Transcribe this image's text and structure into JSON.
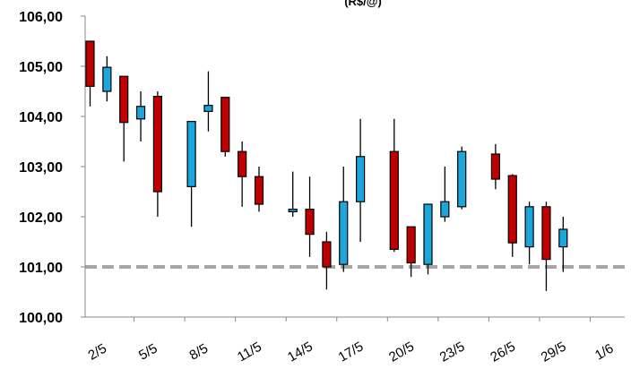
{
  "chart_data": {
    "type": "candlestick",
    "title": "(R$/@)",
    "y_tick_labels": [
      "100,00",
      "101,00",
      "102,00",
      "103,00",
      "104,00",
      "105,00",
      "106,00"
    ],
    "ylim": [
      100,
      106
    ],
    "x_tick_labels": [
      "2/5",
      "5/5",
      "8/5",
      "11/5",
      "14/5",
      "17/5",
      "20/5",
      "23/5",
      "26/5",
      "29/5",
      "1/6"
    ],
    "reference_line": {
      "value": 101.0,
      "style": "dashed",
      "color": "#a6a6a6"
    },
    "colors": {
      "down": "#c00000",
      "up": "#1ca6dc",
      "outline": "#000000"
    },
    "candles": [
      {
        "day": 0,
        "open": 105.5,
        "close": 104.6,
        "high": 105.5,
        "low": 104.2
      },
      {
        "day": 1,
        "open": 104.5,
        "close": 104.98,
        "high": 105.2,
        "low": 104.3
      },
      {
        "day": 2,
        "open": 104.8,
        "close": 103.88,
        "high": 104.8,
        "low": 103.1
      },
      {
        "day": 3,
        "open": 103.95,
        "close": 104.2,
        "high": 104.5,
        "low": 103.5
      },
      {
        "day": 4,
        "open": 104.4,
        "close": 102.5,
        "high": 104.5,
        "low": 102.0
      },
      {
        "day": 6,
        "open": 102.6,
        "close": 103.9,
        "high": 103.9,
        "low": 101.8
      },
      {
        "day": 7,
        "open": 104.1,
        "close": 104.22,
        "high": 104.9,
        "low": 103.7
      },
      {
        "day": 8,
        "open": 104.38,
        "close": 103.3,
        "high": 104.38,
        "low": 103.2
      },
      {
        "day": 9,
        "open": 103.3,
        "close": 102.8,
        "high": 103.5,
        "low": 102.2
      },
      {
        "day": 10,
        "open": 102.8,
        "close": 102.25,
        "high": 103.0,
        "low": 102.1
      },
      {
        "day": 12,
        "open": 102.1,
        "close": 102.15,
        "high": 102.9,
        "low": 102.0
      },
      {
        "day": 13,
        "open": 102.15,
        "close": 101.65,
        "high": 102.8,
        "low": 101.2
      },
      {
        "day": 14,
        "open": 101.5,
        "close": 101.0,
        "high": 101.7,
        "low": 100.55
      },
      {
        "day": 15,
        "open": 101.05,
        "close": 102.3,
        "high": 103.0,
        "low": 100.9
      },
      {
        "day": 16,
        "open": 102.3,
        "close": 103.2,
        "high": 103.95,
        "low": 101.5
      },
      {
        "day": 18,
        "open": 103.3,
        "close": 101.35,
        "high": 103.95,
        "low": 101.3
      },
      {
        "day": 19,
        "open": 101.8,
        "close": 101.08,
        "high": 101.8,
        "low": 100.8
      },
      {
        "day": 20,
        "open": 101.05,
        "close": 102.25,
        "high": 102.25,
        "low": 100.85
      },
      {
        "day": 21,
        "open": 102.0,
        "close": 102.3,
        "high": 103.0,
        "low": 101.9
      },
      {
        "day": 22,
        "open": 102.2,
        "close": 103.3,
        "high": 103.4,
        "low": 102.15
      },
      {
        "day": 24,
        "open": 103.25,
        "close": 102.75,
        "high": 103.45,
        "low": 102.55
      },
      {
        "day": 25,
        "open": 102.82,
        "close": 101.48,
        "high": 102.85,
        "low": 101.2
      },
      {
        "day": 26,
        "open": 101.4,
        "close": 102.2,
        "high": 102.3,
        "low": 101.05
      },
      {
        "day": 27,
        "open": 102.2,
        "close": 101.15,
        "high": 102.3,
        "low": 100.52
      },
      {
        "day": 28,
        "open": 101.4,
        "close": 101.75,
        "high": 102.0,
        "low": 100.9
      }
    ]
  }
}
